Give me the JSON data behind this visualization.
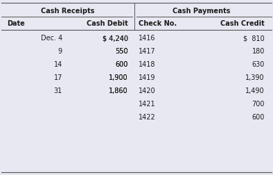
{
  "bg_color": "#e8e8f2",
  "title_left": "Cash Receipts",
  "title_right": "Cash Payments",
  "col_headers": [
    "Date",
    "Cash Debit",
    "Check No.",
    "Cash Credit"
  ],
  "receipts": [
    [
      "Dec. 4",
      "$ 4,240"
    ],
    [
      "9",
      "550"
    ],
    [
      "14",
      "600"
    ],
    [
      "17",
      "1,900"
    ],
    [
      "31",
      "1,860"
    ]
  ],
  "payments": [
    [
      "1416",
      "$  810"
    ],
    [
      "1417",
      "180"
    ],
    [
      "1418",
      "630"
    ],
    [
      "1419",
      "1,390"
    ],
    [
      "1420",
      "1,490"
    ],
    [
      "1421",
      "700"
    ],
    [
      "1422",
      "600"
    ]
  ],
  "font_size": 7.0,
  "line_color": "#555555",
  "text_color": "#1a1a1a"
}
